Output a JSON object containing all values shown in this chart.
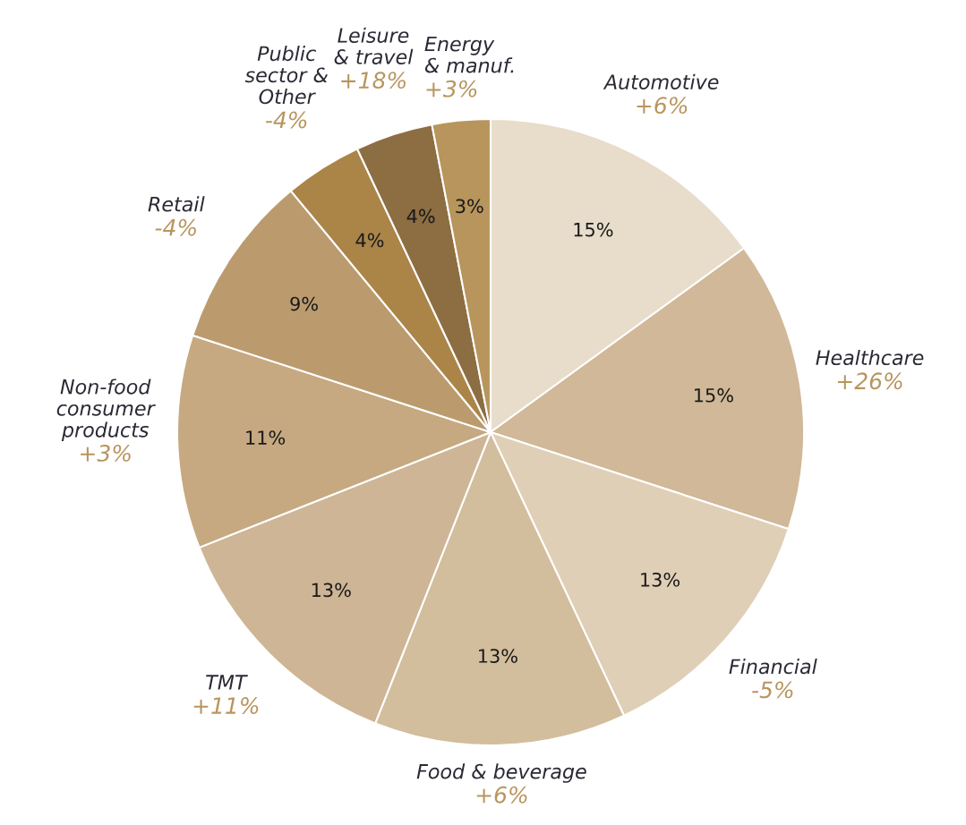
{
  "chart_data": {
    "type": "pie",
    "categories": [
      "Automotive",
      "Healthcare",
      "Financial",
      "Food & beverage",
      "TMT",
      "Non-food\nconsumer\nproducts",
      "Retail",
      "Public\nsector &\nOther",
      "Leisure\n& travel",
      "Energy\n& manuf."
    ],
    "values": [
      15,
      15,
      13,
      13,
      13,
      11,
      9,
      4,
      4,
      3
    ],
    "colors": [
      "#e8dccb",
      "#d0b898",
      "#dfcfb6",
      "#d2bd9d",
      "#cdb595",
      "#c6a980",
      "#bb9b6e",
      "#ab8548",
      "#8d6d42",
      "#b7955c"
    ],
    "value_labels": [
      "15%",
      "15%",
      "13%",
      "13%",
      "13%",
      "11%",
      "9%",
      "4%",
      "4%",
      "3%"
    ],
    "annotations": [
      {
        "text": "+6%",
        "x": "Automotive"
      },
      {
        "text": "+26%",
        "x": "Healthcare"
      },
      {
        "text": "-5%",
        "x": "Financial"
      },
      {
        "text": "+6%",
        "x": "Food & beverage"
      },
      {
        "text": "+11%",
        "x": "TMT"
      },
      {
        "text": "+3%",
        "x": "Non-food\nconsumer\nproducts"
      },
      {
        "text": "-4%",
        "x": "Retail"
      },
      {
        "text": "-4%",
        "x": "Public\nsector &\nOther"
      },
      {
        "text": "+18%",
        "x": "Leisure\n& travel"
      },
      {
        "text": "+3%",
        "x": "Energy\n& manuf."
      }
    ],
    "legend": false
  }
}
